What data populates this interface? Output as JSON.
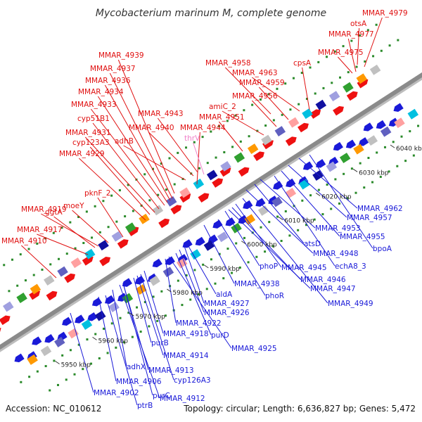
{
  "title": "Mycobacterium marinum M, complete genome",
  "footer": {
    "accession": "Accession: NC_010612",
    "topology": "Topology: circular; Length: 6,636,827 bp; Genes: 5,472"
  },
  "colors": {
    "backbone": "#8a8a8a",
    "forward_gene": "#ee1111",
    "reverse_gene": "#1a1ad8",
    "tick": "#2a8a2a",
    "forward_label": "#e01010",
    "reverse_label": "#1a1ad8",
    "rna_label": "#f080c8"
  },
  "kbp_ticks": [
    "5950 kbp",
    "5960 kbp",
    "5970 kbp",
    "5980 kbp",
    "5990 kbp",
    "6000 kbp",
    "6010 kbp",
    "6020 kbp",
    "6030 kbp",
    "6040 kbp"
  ],
  "top_labels": [
    {
      "text": "MMAR_4979",
      "color": "red"
    },
    {
      "text": "otsA",
      "color": "red"
    },
    {
      "text": "MMAR_4977",
      "color": "red"
    },
    {
      "text": "MMAR_4975",
      "color": "red"
    },
    {
      "text": "cpsA",
      "color": "red"
    },
    {
      "text": "MMAR_4939",
      "color": "red"
    },
    {
      "text": "MMAR_4958",
      "color": "red"
    },
    {
      "text": "MMAR_4963",
      "color": "red"
    },
    {
      "text": "MMAR_4937",
      "color": "red"
    },
    {
      "text": "MMAR_4936",
      "color": "red"
    },
    {
      "text": "MMAR_4959",
      "color": "red"
    },
    {
      "text": "MMAR_4934",
      "color": "red"
    },
    {
      "text": "MMAR_4956",
      "color": "red"
    },
    {
      "text": "MMAR_4933",
      "color": "red"
    },
    {
      "text": "amiC_2",
      "color": "red"
    },
    {
      "text": "cyp51B1",
      "color": "red"
    },
    {
      "text": "MMAR_4943",
      "color": "red"
    },
    {
      "text": "MMAR_4951",
      "color": "red"
    },
    {
      "text": "MMAR_4940",
      "color": "red"
    },
    {
      "text": "MMAR_4944",
      "color": "red"
    },
    {
      "text": "MMAR_4931",
      "color": "red"
    },
    {
      "text": "cyp123A3",
      "color": "red"
    },
    {
      "text": "adhB",
      "color": "red"
    },
    {
      "text": "thrV",
      "color": "pink"
    },
    {
      "text": "MMAR_4929",
      "color": "red"
    },
    {
      "text": "pknF_2",
      "color": "red"
    },
    {
      "text": "moeY",
      "color": "red"
    },
    {
      "text": "MMAR_4919",
      "color": "red"
    },
    {
      "text": "ggtA",
      "color": "red"
    },
    {
      "text": "MMAR_4917",
      "color": "red"
    },
    {
      "text": "MMAR_4910",
      "color": "red"
    }
  ],
  "bottom_labels": [
    {
      "text": "MMAR_4962",
      "color": "blue"
    },
    {
      "text": "MMAR_4957",
      "color": "blue"
    },
    {
      "text": "MMAR_4953",
      "color": "blue"
    },
    {
      "text": "MMAR_4955",
      "color": "blue"
    },
    {
      "text": "atsD",
      "color": "blue"
    },
    {
      "text": "bpoA",
      "color": "blue"
    },
    {
      "text": "MMAR_4948",
      "color": "blue"
    },
    {
      "text": "echA8_3",
      "color": "blue"
    },
    {
      "text": "phoP",
      "color": "blue"
    },
    {
      "text": "MMAR_4945",
      "color": "blue"
    },
    {
      "text": "MMAR_4946",
      "color": "blue"
    },
    {
      "text": "MMAR_4938",
      "color": "blue"
    },
    {
      "text": "MMAR_4947",
      "color": "blue"
    },
    {
      "text": "phoR",
      "color": "blue"
    },
    {
      "text": "MMAR_4949",
      "color": "blue"
    },
    {
      "text": "aldA",
      "color": "blue"
    },
    {
      "text": "MMAR_4927",
      "color": "blue"
    },
    {
      "text": "MMAR_4926",
      "color": "blue"
    },
    {
      "text": "MMAR_4922",
      "color": "blue"
    },
    {
      "text": "purD",
      "color": "blue"
    },
    {
      "text": "MMAR_4918",
      "color": "blue"
    },
    {
      "text": "MMAR_4925",
      "color": "blue"
    },
    {
      "text": "purB",
      "color": "blue"
    },
    {
      "text": "MMAR_4914",
      "color": "blue"
    },
    {
      "text": "adhX",
      "color": "blue"
    },
    {
      "text": "MMAR_4913",
      "color": "blue"
    },
    {
      "text": "cyp126A3",
      "color": "blue"
    },
    {
      "text": "MMAR_4906",
      "color": "blue"
    },
    {
      "text": "MMAR_4902",
      "color": "blue"
    },
    {
      "text": "purC",
      "color": "blue"
    },
    {
      "text": "MMAR_4912",
      "color": "blue"
    },
    {
      "text": "ptrB",
      "color": "blue"
    }
  ]
}
